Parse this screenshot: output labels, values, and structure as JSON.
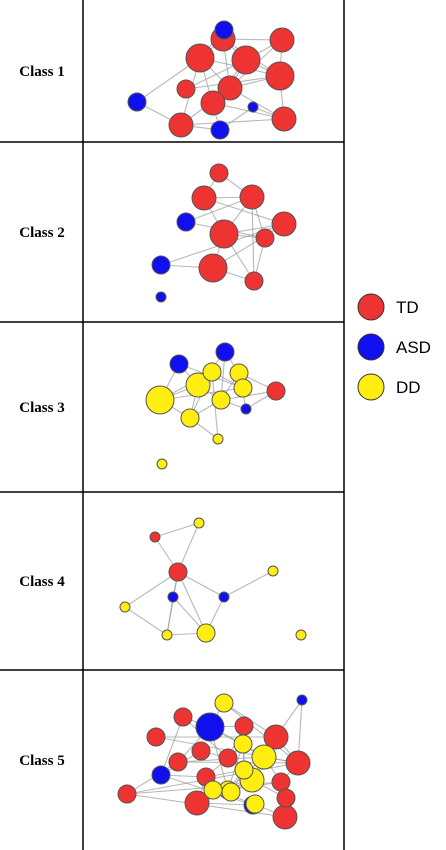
{
  "colors": {
    "TD": "#ee3333",
    "ASD": "#1010ee",
    "DD": "#ffee10"
  },
  "legend": [
    {
      "key": "TD",
      "label": "TD"
    },
    {
      "key": "ASD",
      "label": "ASD"
    },
    {
      "key": "DD",
      "label": "DD"
    }
  ],
  "classes": [
    {
      "label": "Class 1",
      "nodes": [
        {
          "t": "ASD",
          "s": 1
        },
        {
          "t": "TD",
          "s": 3
        },
        {
          "t": "TD",
          "s": 2
        },
        {
          "t": "TD",
          "s": 2
        },
        {
          "t": "TD",
          "s": 3
        },
        {
          "t": "TD",
          "s": 1
        },
        {
          "t": "ASD",
          "s": 1
        },
        {
          "t": "TD",
          "s": 2
        },
        {
          "t": "TD",
          "s": 3
        },
        {
          "t": "ASD",
          "s": 0
        },
        {
          "t": "TD",
          "s": 2
        },
        {
          "t": "ASD",
          "s": 1
        },
        {
          "t": "TD",
          "s": 2
        },
        {
          "t": "TD",
          "s": 2
        }
      ],
      "edges": [
        [
          0,
          1
        ],
        [
          0,
          2
        ],
        [
          1,
          2
        ],
        [
          1,
          4
        ],
        [
          1,
          6
        ],
        [
          1,
          7
        ],
        [
          1,
          10
        ],
        [
          2,
          3
        ],
        [
          2,
          4
        ],
        [
          2,
          7
        ],
        [
          3,
          4
        ],
        [
          3,
          8
        ],
        [
          4,
          5
        ],
        [
          4,
          7
        ],
        [
          4,
          8
        ],
        [
          5,
          8
        ],
        [
          6,
          10
        ],
        [
          7,
          8
        ],
        [
          7,
          10
        ],
        [
          7,
          12
        ],
        [
          8,
          13
        ],
        [
          9,
          11
        ],
        [
          9,
          12
        ],
        [
          10,
          11
        ],
        [
          10,
          12
        ],
        [
          12,
          13
        ],
        [
          3,
          13
        ],
        [
          2,
          8
        ],
        [
          1,
          11
        ],
        [
          4,
          12
        ]
      ]
    },
    {
      "label": "Class 2",
      "nodes": [
        {
          "t": "TD",
          "s": 1
        },
        {
          "t": "TD",
          "s": 2
        },
        {
          "t": "TD",
          "s": 2
        },
        {
          "t": "TD",
          "s": 2
        },
        {
          "t": "ASD",
          "s": 1
        },
        {
          "t": "TD",
          "s": 3
        },
        {
          "t": "TD",
          "s": 1
        },
        {
          "t": "ASD",
          "s": 1
        },
        {
          "t": "TD",
          "s": 3
        },
        {
          "t": "TD",
          "s": 1
        },
        {
          "t": "ASD",
          "s": 0
        }
      ],
      "edges": [
        [
          0,
          1
        ],
        [
          0,
          2
        ],
        [
          1,
          3
        ],
        [
          1,
          5
        ],
        [
          2,
          5
        ],
        [
          2,
          4
        ],
        [
          2,
          6
        ],
        [
          3,
          5
        ],
        [
          3,
          7
        ],
        [
          3,
          8
        ],
        [
          4,
          6
        ],
        [
          5,
          8
        ],
        [
          5,
          9
        ],
        [
          6,
          9
        ],
        [
          7,
          8
        ],
        [
          8,
          9
        ],
        [
          5,
          6
        ],
        [
          2,
          9
        ],
        [
          1,
          2
        ]
      ]
    },
    {
      "label": "Class 3",
      "nodes": [
        {
          "t": "ASD",
          "s": 1
        },
        {
          "t": "ASD",
          "s": 1
        },
        {
          "t": "DD",
          "s": 1
        },
        {
          "t": "DD",
          "s": 2
        },
        {
          "t": "DD",
          "s": 1
        },
        {
          "t": "TD",
          "s": 1
        },
        {
          "t": "DD",
          "s": 3
        },
        {
          "t": "DD",
          "s": 1
        },
        {
          "t": "DD",
          "s": 1
        },
        {
          "t": "ASD",
          "s": 0
        },
        {
          "t": "DD",
          "s": 1
        },
        {
          "t": "DD",
          "s": 0
        },
        {
          "t": "DD",
          "s": 0
        }
      ],
      "edges": [
        [
          0,
          3
        ],
        [
          0,
          4
        ],
        [
          0,
          6
        ],
        [
          1,
          2
        ],
        [
          1,
          3
        ],
        [
          1,
          8
        ],
        [
          2,
          8
        ],
        [
          2,
          9
        ],
        [
          3,
          6
        ],
        [
          3,
          7
        ],
        [
          3,
          10
        ],
        [
          4,
          6
        ],
        [
          4,
          10
        ],
        [
          6,
          7
        ],
        [
          6,
          10
        ],
        [
          7,
          8
        ],
        [
          7,
          11
        ],
        [
          8,
          9
        ],
        [
          8,
          5
        ],
        [
          9,
          5
        ],
        [
          10,
          11
        ],
        [
          7,
          10
        ],
        [
          3,
          8
        ],
        [
          2,
          5
        ]
      ]
    },
    {
      "label": "Class 4",
      "nodes": [
        {
          "t": "DD",
          "s": 0
        },
        {
          "t": "TD",
          "s": 0
        },
        {
          "t": "TD",
          "s": 1
        },
        {
          "t": "DD",
          "s": 0
        },
        {
          "t": "ASD",
          "s": 0
        },
        {
          "t": "ASD",
          "s": 0
        },
        {
          "t": "DD",
          "s": 0
        },
        {
          "t": "DD",
          "s": 0
        },
        {
          "t": "DD",
          "s": 1
        },
        {
          "t": "DD",
          "s": 0
        }
      ],
      "edges": [
        [
          1,
          0
        ],
        [
          1,
          2
        ],
        [
          0,
          2
        ],
        [
          2,
          4
        ],
        [
          2,
          5
        ],
        [
          2,
          6
        ],
        [
          2,
          7
        ],
        [
          2,
          8
        ],
        [
          5,
          3
        ],
        [
          5,
          8
        ],
        [
          4,
          7
        ],
        [
          6,
          7
        ],
        [
          7,
          8
        ],
        [
          4,
          8
        ]
      ]
    },
    {
      "label": "Class 5",
      "nodes": [
        {
          "t": "DD",
          "s": 1
        },
        {
          "t": "ASD",
          "s": 0
        },
        {
          "t": "TD",
          "s": 1
        },
        {
          "t": "ASD",
          "s": 3
        },
        {
          "t": "TD",
          "s": 1
        },
        {
          "t": "TD",
          "s": 1
        },
        {
          "t": "TD",
          "s": 2
        },
        {
          "t": "TD",
          "s": 1
        },
        {
          "t": "TD",
          "s": 1
        },
        {
          "t": "DD",
          "s": 1
        },
        {
          "t": "DD",
          "s": 2
        },
        {
          "t": "TD",
          "s": 1
        },
        {
          "t": "TD",
          "s": 2
        },
        {
          "t": "ASD",
          "s": 1
        },
        {
          "t": "TD",
          "s": 1
        },
        {
          "t": "DD",
          "s": 1
        },
        {
          "t": "DD",
          "s": 1
        },
        {
          "t": "TD",
          "s": 1
        },
        {
          "t": "TD",
          "s": 1
        },
        {
          "t": "ASD",
          "s": 1
        },
        {
          "t": "TD",
          "s": 2
        },
        {
          "t": "DD",
          "s": 1
        },
        {
          "t": "DD",
          "s": 2
        },
        {
          "t": "TD",
          "s": 1
        },
        {
          "t": "DD",
          "s": 1
        },
        {
          "t": "TD",
          "s": 2
        },
        {
          "t": "DD",
          "s": 1
        }
      ],
      "edges": [
        [
          0,
          3
        ],
        [
          0,
          6
        ],
        [
          0,
          12
        ],
        [
          1,
          6
        ],
        [
          1,
          12
        ],
        [
          2,
          3
        ],
        [
          2,
          8
        ],
        [
          3,
          4
        ],
        [
          3,
          9
        ],
        [
          3,
          10
        ],
        [
          3,
          11
        ],
        [
          4,
          8
        ],
        [
          4,
          9
        ],
        [
          5,
          6
        ],
        [
          5,
          12
        ],
        [
          6,
          10
        ],
        [
          6,
          12
        ],
        [
          7,
          8
        ],
        [
          7,
          13
        ],
        [
          8,
          9
        ],
        [
          8,
          14
        ],
        [
          9,
          10
        ],
        [
          9,
          15
        ],
        [
          10,
          11
        ],
        [
          10,
          12
        ],
        [
          10,
          16
        ],
        [
          10,
          17
        ],
        [
          11,
          12
        ],
        [
          11,
          18
        ],
        [
          12,
          17
        ],
        [
          13,
          14
        ],
        [
          13,
          19
        ],
        [
          14,
          15
        ],
        [
          14,
          20
        ],
        [
          15,
          16
        ],
        [
          15,
          21
        ],
        [
          16,
          17
        ],
        [
          16,
          22
        ],
        [
          17,
          18
        ],
        [
          17,
          23
        ],
        [
          18,
          25
        ],
        [
          19,
          20
        ],
        [
          20,
          21
        ],
        [
          21,
          22
        ],
        [
          22,
          23
        ],
        [
          22,
          24
        ],
        [
          23,
          25
        ],
        [
          24,
          26
        ],
        [
          25,
          26
        ],
        [
          9,
          16
        ],
        [
          4,
          15
        ],
        [
          10,
          22
        ],
        [
          3,
          16
        ],
        [
          12,
          18
        ],
        [
          2,
          13
        ],
        [
          8,
          15
        ]
      ]
    }
  ]
}
